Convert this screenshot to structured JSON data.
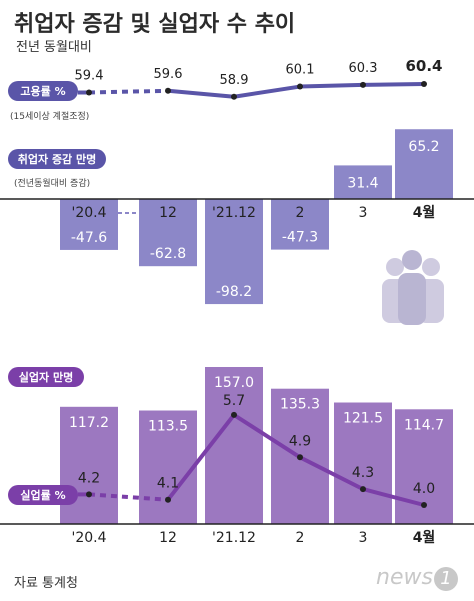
{
  "title": "취업자 증감 및 실업자 수 추이",
  "subtitle": "전년 동월대비",
  "source": "자료 통계청",
  "logo_text": "news",
  "logo_num": "1",
  "colors": {
    "employment_line": "#5a55a8",
    "employment_badge": "#5a55a8",
    "bar_employed": "#8c87c8",
    "bar_employed_light": "#b4b0dd",
    "bar_unemployed": "#9c78c0",
    "unemployment_line": "#7b3fa8",
    "unemployed_badge": "#7b3fa8",
    "axis": "#222222",
    "icon_fill": "#d9d6e6"
  },
  "chart_data": [
    {
      "type": "line",
      "label": "고용률 %",
      "note": "(15세이상 계절조정)",
      "categories": [
        "'20.4",
        "12",
        "'21.12",
        "2",
        "3",
        "4월"
      ],
      "values": [
        59.4,
        59.6,
        58.9,
        60.1,
        60.3,
        60.4
      ],
      "labels": [
        "59.4",
        "59.6",
        "58.9",
        "60.1",
        "60.3",
        "60.4"
      ]
    },
    {
      "type": "bar",
      "label": "취업자 증감",
      "unit": "만명",
      "note": "(전년동월대비 증감)",
      "categories": [
        "'20.4",
        "12",
        "'21.12",
        "2",
        "3",
        "4월"
      ],
      "values": [
        -47.6,
        -62.8,
        -98.2,
        -47.3,
        31.4,
        65.2
      ],
      "labels": [
        "-47.6",
        "-62.8",
        "-98.2",
        "-47.3",
        "31.4",
        "65.2"
      ]
    },
    {
      "type": "bar",
      "label": "실업자",
      "unit": "만명",
      "categories": [
        "'20.4",
        "12",
        "'21.12",
        "2",
        "3",
        "4월"
      ],
      "values": [
        117.2,
        113.5,
        157.0,
        135.3,
        121.5,
        114.7
      ],
      "labels": [
        "117.2",
        "113.5",
        "157.0",
        "135.3",
        "121.5",
        "114.7"
      ]
    },
    {
      "type": "line",
      "label": "실업률 %",
      "categories": [
        "'20.4",
        "12",
        "'21.12",
        "2",
        "3",
        "4월"
      ],
      "values": [
        4.2,
        4.1,
        5.7,
        4.9,
        4.3,
        4.0
      ],
      "labels": [
        "4.2",
        "4.1",
        "5.7",
        "4.9",
        "4.3",
        "4.0"
      ]
    }
  ]
}
